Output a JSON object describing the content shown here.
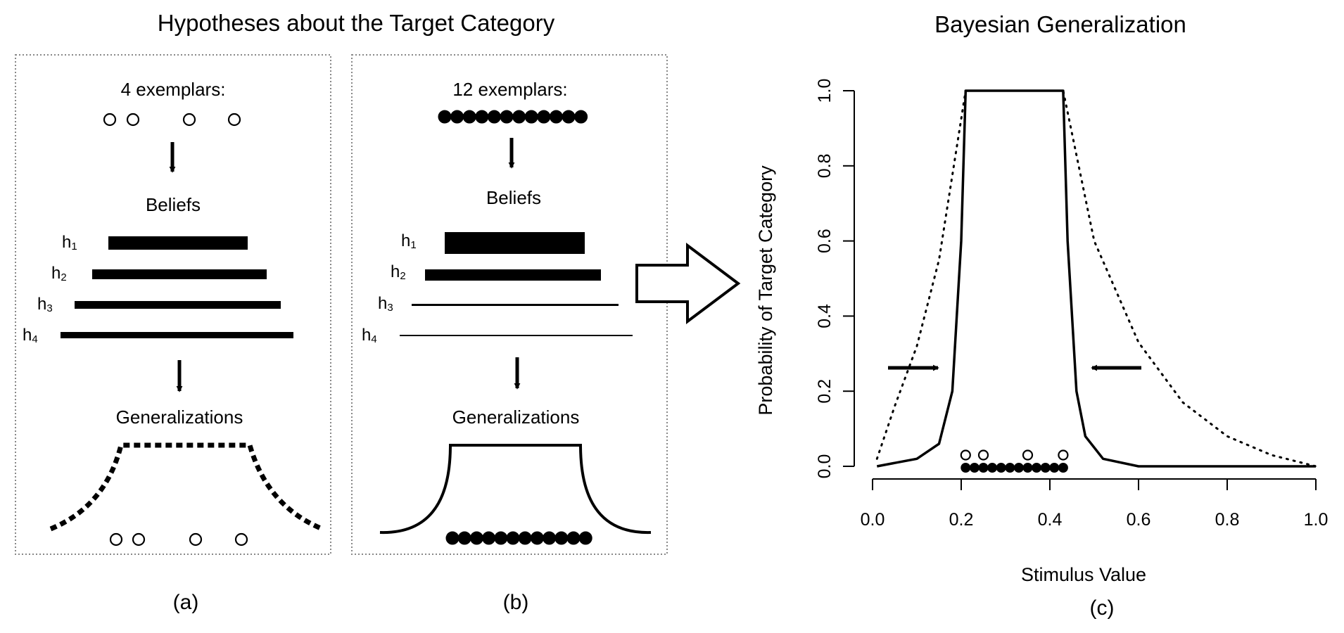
{
  "figure_title": "Hypotheses about the Target Category",
  "panel_a": {
    "exemplar_label": "4 exemplars:",
    "beliefs_label": "Beliefs",
    "generalizations_label": "Generalizations",
    "caption": "(a)",
    "hypotheses": [
      {
        "letter": "h",
        "index": "1"
      },
      {
        "letter": "h",
        "index": "2"
      },
      {
        "letter": "h",
        "index": "3"
      },
      {
        "letter": "h",
        "index": "4"
      }
    ]
  },
  "panel_b": {
    "exemplar_label": "12 exemplars:",
    "beliefs_label": "Beliefs",
    "generalizations_label": "Generalizations",
    "caption": "(b)",
    "hypotheses": [
      {
        "letter": "h",
        "index": "1"
      },
      {
        "letter": "h",
        "index": "2"
      },
      {
        "letter": "h",
        "index": "3"
      },
      {
        "letter": "h",
        "index": "4"
      }
    ]
  },
  "chart_data": {
    "type": "line",
    "title": "Bayesian Generalization",
    "xlabel": "Stimulus Value",
    "ylabel": "Probability of Target Category",
    "caption": "(c)",
    "xlim": [
      0,
      1
    ],
    "ylim": [
      0,
      1
    ],
    "xticks": [
      "0.0",
      "0.2",
      "0.4",
      "0.6",
      "0.8",
      "1.0"
    ],
    "yticks": [
      "0.0",
      "0.2",
      "0.4",
      "0.6",
      "0.8",
      "1.0"
    ],
    "grid": false,
    "series": [
      {
        "style": "dotted",
        "x": [
          0.01,
          0.05,
          0.1,
          0.15,
          0.21,
          0.43,
          0.5,
          0.6,
          0.7,
          0.8,
          0.9,
          1.0
        ],
        "y": [
          0.02,
          0.16,
          0.32,
          0.55,
          1.0,
          1.0,
          0.6,
          0.33,
          0.17,
          0.08,
          0.03,
          0.0
        ]
      },
      {
        "style": "solid",
        "x": [
          0.01,
          0.1,
          0.15,
          0.18,
          0.2,
          0.21,
          0.43,
          0.44,
          0.46,
          0.48,
          0.52,
          0.6,
          1.0
        ],
        "y": [
          0.0,
          0.02,
          0.06,
          0.2,
          0.6,
          1.0,
          1.0,
          0.6,
          0.2,
          0.08,
          0.02,
          0.0,
          0.0
        ]
      }
    ],
    "exemplars_4": [
      0.21,
      0.25,
      0.35,
      0.43
    ],
    "exemplars_12": [
      0.21,
      0.23,
      0.25,
      0.27,
      0.29,
      0.31,
      0.33,
      0.35,
      0.37,
      0.39,
      0.41,
      0.43
    ]
  }
}
